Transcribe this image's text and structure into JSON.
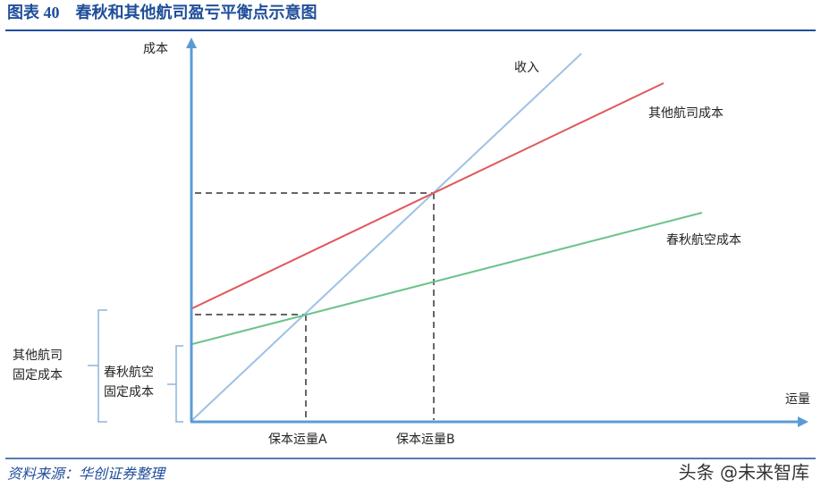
{
  "header": {
    "title": "图表 40　春秋和其他航司盈亏平衡点示意图"
  },
  "axes": {
    "y_label": "成本",
    "x_label": "运量"
  },
  "lines": [
    {
      "label": "收入"
    },
    {
      "label": "其他航司成本"
    },
    {
      "label": "春秋航空成本"
    }
  ],
  "brackets": [
    {
      "label": [
        "其他航司",
        "固定成本"
      ]
    },
    {
      "label": [
        "春秋航空",
        "固定成本"
      ]
    }
  ],
  "breakeven": [
    "保本运量A",
    "保本运量B"
  ],
  "footer": {
    "source": "资料来源：华创证券整理",
    "watermark": "头条 @未来智库"
  }
}
